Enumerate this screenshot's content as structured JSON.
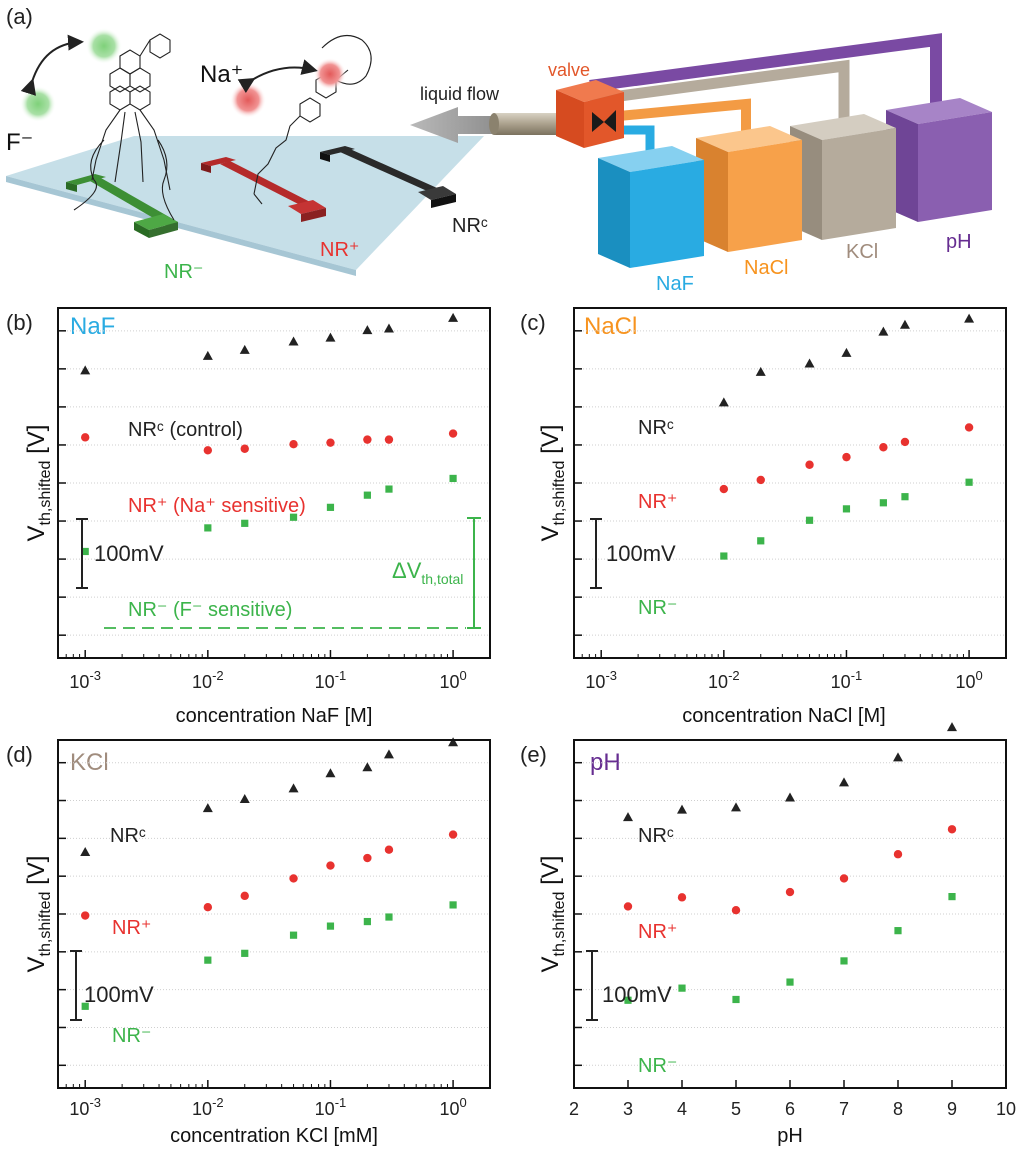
{
  "figure": {
    "panel_labels": [
      "(a)",
      "(b)",
      "(c)",
      "(d)",
      "(e)"
    ]
  },
  "schematic": {
    "ion_f": "F⁻",
    "ion_na": "Na⁺",
    "nr_minus": "NR⁻",
    "nr_plus": "NR⁺",
    "nr_c": "NRᶜ",
    "valve": "valve",
    "liquid_flow": "liquid flow",
    "reservoirs": [
      "NaF",
      "NaCl",
      "KCl",
      "pH"
    ],
    "colors": {
      "nr_minus": "#3d8f35",
      "nr_plus": "#b52a2a",
      "nr_c": "#2a2a2a",
      "substrate": "#bcd9e4",
      "valve": "#e2572a",
      "naf": "#29abe2",
      "nacl": "#f7a14a",
      "kcl": "#b5ab9c",
      "ph": "#8a5fb0"
    }
  },
  "chart_data": [
    {
      "id": "b",
      "type": "scatter",
      "title": "NaF",
      "xscale": "log",
      "xlabel": "concentration NaF [M]",
      "ylabel": "V_th,shifted [V]",
      "xlim": [
        0.0006,
        2.0
      ],
      "ylim": [
        -0.23,
        0.23
      ],
      "ytick_count": 10,
      "xticks": [
        0.001,
        0.01,
        0.1,
        1
      ],
      "xtick_labels": [
        {
          "base": "10",
          "exp": "-3"
        },
        {
          "base": "10",
          "exp": "-2"
        },
        {
          "base": "10",
          "exp": "-1"
        },
        {
          "base": "10",
          "exp": "0"
        }
      ],
      "series": [
        {
          "name": "NRᶜ (control)",
          "color": "#222222",
          "marker": "triangle",
          "x": [
            0.001,
            0.01,
            0.02,
            0.05,
            0.1,
            0.2,
            0.3,
            1.0
          ],
          "y": [
            0.148,
            0.167,
            0.175,
            0.186,
            0.191,
            0.201,
            0.203,
            0.217
          ]
        },
        {
          "name": "NR⁺ (Na⁺ sensitive)",
          "color": "#e8322f",
          "marker": "circle",
          "x": [
            0.001,
            0.01,
            0.02,
            0.05,
            0.1,
            0.2,
            0.3,
            1.0
          ],
          "y": [
            0.06,
            0.043,
            0.045,
            0.051,
            0.053,
            0.057,
            0.057,
            0.065
          ]
        },
        {
          "name": "NR⁻ (F⁻ sensitive)",
          "color": "#3cb44b",
          "marker": "square",
          "x": [
            0.001,
            0.01,
            0.02,
            0.05,
            0.1,
            0.2,
            0.3,
            1.0
          ],
          "y": [
            -0.09,
            -0.059,
            -0.053,
            -0.045,
            -0.032,
            -0.016,
            -0.008,
            0.006
          ]
        }
      ],
      "annotations": {
        "scale_bar": "100mV",
        "delta": "ΔV",
        "delta_sub": "th,total",
        "labels": [
          "NRᶜ (control)",
          "NR⁺ (Na⁺ sensitive)",
          "NR⁻ (F⁻ sensitive)"
        ]
      }
    },
    {
      "id": "c",
      "type": "scatter",
      "title": "NaCl",
      "xscale": "log",
      "xlabel": "concentration NaCl [M]",
      "ylabel": "V_th,shifted [V]",
      "xlim": [
        0.0006,
        2.0
      ],
      "ylim": [
        -0.23,
        0.23
      ],
      "xticks": [
        0.001,
        0.01,
        0.1,
        1
      ],
      "xtick_labels": [
        {
          "base": "10",
          "exp": "-3"
        },
        {
          "base": "10",
          "exp": "-2"
        },
        {
          "base": "10",
          "exp": "-1"
        },
        {
          "base": "10",
          "exp": "0"
        }
      ],
      "series": [
        {
          "name": "NRᶜ",
          "color": "#222222",
          "marker": "triangle",
          "x": [
            0.01,
            0.02,
            0.05,
            0.1,
            0.2,
            0.3,
            1.0
          ],
          "y": [
            0.106,
            0.146,
            0.157,
            0.171,
            0.199,
            0.208,
            0.216
          ]
        },
        {
          "name": "NR⁺",
          "color": "#e8322f",
          "marker": "circle",
          "x": [
            0.01,
            0.02,
            0.05,
            0.1,
            0.2,
            0.3,
            1.0
          ],
          "y": [
            -0.008,
            0.004,
            0.024,
            0.034,
            0.047,
            0.054,
            0.073
          ]
        },
        {
          "name": "NR⁻",
          "color": "#3cb44b",
          "marker": "square",
          "x": [
            0.01,
            0.02,
            0.05,
            0.1,
            0.2,
            0.3,
            1.0
          ],
          "y": [
            -0.096,
            -0.076,
            -0.049,
            -0.034,
            -0.026,
            -0.018,
            0.001
          ]
        }
      ],
      "annotations": {
        "scale_bar": "100mV",
        "labels": [
          "NRᶜ",
          "NR⁺",
          "NR⁻"
        ]
      }
    },
    {
      "id": "d",
      "type": "scatter",
      "title": "KCl",
      "xscale": "log",
      "xlabel": "concentration KCl [mM]",
      "ylabel": "V_th,shifted [V]",
      "xlim": [
        0.0006,
        2.0
      ],
      "ylim": [
        -0.23,
        0.23
      ],
      "xticks": [
        0.001,
        0.01,
        0.1,
        1
      ],
      "xtick_labels": [
        {
          "base": "10",
          "exp": "-3"
        },
        {
          "base": "10",
          "exp": "-2"
        },
        {
          "base": "10",
          "exp": "-1"
        },
        {
          "base": "10",
          "exp": "0"
        }
      ],
      "series": [
        {
          "name": "NRᶜ",
          "color": "#222222",
          "marker": "triangle",
          "x": [
            0.001,
            0.01,
            0.02,
            0.05,
            0.1,
            0.2,
            0.3,
            1.0
          ],
          "y": [
            0.082,
            0.14,
            0.152,
            0.166,
            0.186,
            0.194,
            0.211,
            0.227
          ]
        },
        {
          "name": "NR⁺",
          "color": "#e8322f",
          "marker": "circle",
          "x": [
            0.001,
            0.01,
            0.02,
            0.05,
            0.1,
            0.2,
            0.3,
            1.0
          ],
          "y": [
            -0.002,
            0.009,
            0.024,
            0.047,
            0.064,
            0.074,
            0.085,
            0.105
          ]
        },
        {
          "name": "NR⁻",
          "color": "#3cb44b",
          "marker": "square",
          "x": [
            0.001,
            0.01,
            0.02,
            0.05,
            0.1,
            0.2,
            0.3,
            1.0
          ],
          "y": [
            -0.122,
            -0.061,
            -0.052,
            -0.028,
            -0.016,
            -0.01,
            -0.004,
            0.012
          ]
        }
      ],
      "annotations": {
        "scale_bar": "100mV",
        "labels": [
          "NRᶜ",
          "NR⁺",
          "NR⁻"
        ]
      }
    },
    {
      "id": "e",
      "type": "scatter",
      "title": "pH",
      "xscale": "linear",
      "xlabel": "pH",
      "ylabel": "V_th,shifted [V]",
      "xlim": [
        2,
        10
      ],
      "ylim": [
        -0.23,
        0.23
      ],
      "xticks": [
        2,
        3,
        4,
        5,
        6,
        7,
        8,
        9,
        10
      ],
      "xtick_labels": [
        "2",
        "3",
        "4",
        "5",
        "6",
        "7",
        "8",
        "9",
        "10"
      ],
      "series": [
        {
          "name": "NRᶜ",
          "color": "#222222",
          "marker": "triangle",
          "x": [
            3,
            4,
            5,
            6,
            7,
            8,
            9
          ],
          "y": [
            0.128,
            0.138,
            0.141,
            0.154,
            0.174,
            0.207,
            0.247
          ]
        },
        {
          "name": "NR⁺",
          "color": "#e8322f",
          "marker": "circle",
          "x": [
            3,
            4,
            5,
            6,
            7,
            8,
            9
          ],
          "y": [
            0.01,
            0.022,
            0.005,
            0.029,
            0.047,
            0.079,
            0.112
          ]
        },
        {
          "name": "NR⁻",
          "color": "#3cb44b",
          "marker": "square",
          "x": [
            3,
            4,
            5,
            6,
            7,
            8,
            9
          ],
          "y": [
            -0.114,
            -0.098,
            -0.113,
            -0.09,
            -0.062,
            -0.022,
            0.023
          ]
        }
      ],
      "annotations": {
        "scale_bar": "100mV",
        "labels": [
          "NRᶜ",
          "NR⁺",
          "NR⁻"
        ]
      }
    }
  ]
}
